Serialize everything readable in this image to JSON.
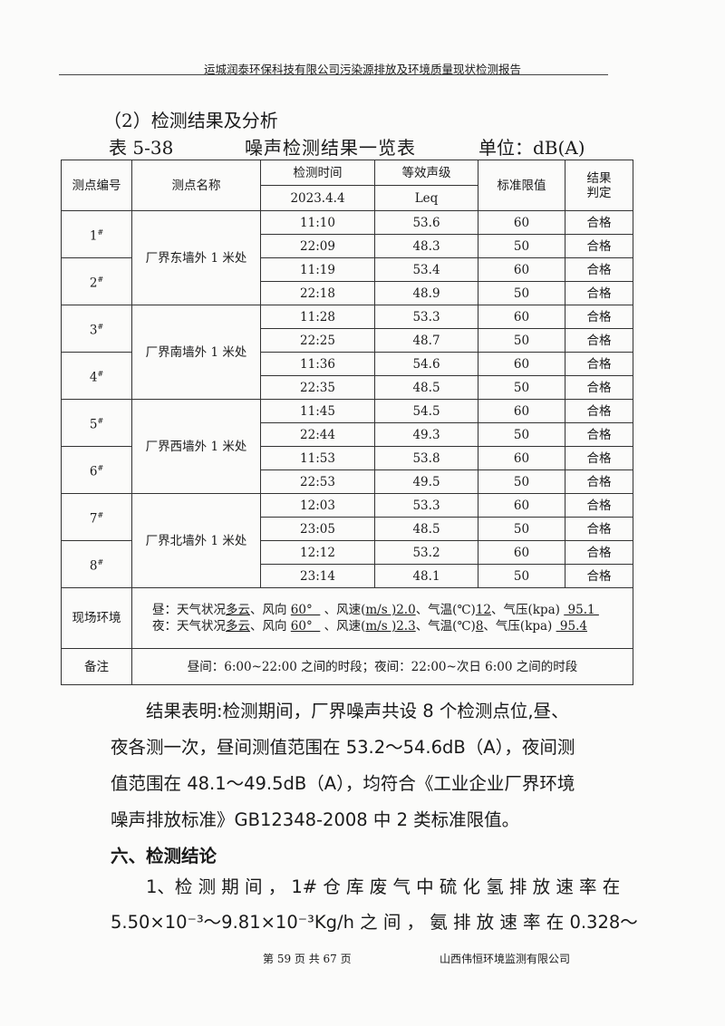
{
  "header": "运城润泰环保科技有限公司污染源排放及环境质量现状检测报告",
  "section_title": "（2）检测结果及分析",
  "caption": {
    "number": "表 5-38",
    "title": "噪声检测结果一览表",
    "unit": "单位：dB(A)"
  },
  "table": {
    "headers": {
      "point_no": "测点编号",
      "point_name": "测点名称",
      "time": "检测时间",
      "date": "2023.4.4",
      "level": "等效声级",
      "level_unit": "Leq",
      "limit": "标准限值",
      "result": "结果\n判定"
    },
    "groups": [
      {
        "name": "厂界东墙外 1 米处",
        "points": [
          {
            "id": "1",
            "rows": [
              [
                "11:10",
                "53.6",
                "60",
                "合格"
              ],
              [
                "22:09",
                "48.3",
                "50",
                "合格"
              ]
            ]
          },
          {
            "id": "2",
            "rows": [
              [
                "11:19",
                "53.4",
                "60",
                "合格"
              ],
              [
                "22:18",
                "48.9",
                "50",
                "合格"
              ]
            ]
          }
        ]
      },
      {
        "name": "厂界南墙外 1 米处",
        "points": [
          {
            "id": "3",
            "rows": [
              [
                "11:28",
                "53.3",
                "60",
                "合格"
              ],
              [
                "22:25",
                "48.7",
                "50",
                "合格"
              ]
            ]
          },
          {
            "id": "4",
            "rows": [
              [
                "11:36",
                "54.6",
                "60",
                "合格"
              ],
              [
                "22:35",
                "48.5",
                "50",
                "合格"
              ]
            ]
          }
        ]
      },
      {
        "name": "厂界西墙外 1 米处",
        "points": [
          {
            "id": "5",
            "rows": [
              [
                "11:45",
                "54.5",
                "60",
                "合格"
              ],
              [
                "22:44",
                "49.3",
                "50",
                "合格"
              ]
            ]
          },
          {
            "id": "6",
            "rows": [
              [
                "11:53",
                "53.8",
                "60",
                "合格"
              ],
              [
                "22:53",
                "49.5",
                "50",
                "合格"
              ]
            ]
          }
        ]
      },
      {
        "name": "厂界北墙外 1 米处",
        "points": [
          {
            "id": "7",
            "rows": [
              [
                "12:03",
                "53.3",
                "60",
                "合格"
              ],
              [
                "23:05",
                "48.5",
                "50",
                "合格"
              ]
            ]
          },
          {
            "id": "8",
            "rows": [
              [
                "12:12",
                "53.2",
                "60",
                "合格"
              ],
              [
                "23:14",
                "48.1",
                "50",
                "合格"
              ]
            ]
          }
        ]
      }
    ],
    "point_suffix": "#",
    "env_label": "现场环境",
    "env_lines": [
      [
        {
          "t": "昼：天气状况"
        },
        {
          "t": "多云",
          "u": true
        },
        {
          "t": "、风向 "
        },
        {
          "t": "60°  ",
          "u": true
        },
        {
          "t": " 、风速("
        },
        {
          "t": "m/s )2.0",
          "u": true
        },
        {
          "t": "、气温(℃)"
        },
        {
          "t": "12",
          "u": true
        },
        {
          "t": "、气压(kpa) "
        },
        {
          "t": " 95.1 ",
          "u": true
        }
      ],
      [
        {
          "t": "夜：天气状况"
        },
        {
          "t": "多云",
          "u": true
        },
        {
          "t": "、风向 "
        },
        {
          "t": "60°  ",
          "u": true
        },
        {
          "t": " 、风速("
        },
        {
          "t": "m/s )2.3",
          "u": true
        },
        {
          "t": "、气温(℃)"
        },
        {
          "t": "8",
          "u": true
        },
        {
          "t": "、气压(kpa) "
        },
        {
          "t": " 95.4",
          "u": true
        }
      ]
    ],
    "remark_label": "备注",
    "remark": "昼间：6:00~22:00 之间的时段；夜间：22:00~次日 6:00 之间的时段"
  },
  "result_para": [
    "　　结果表明:检测期间，厂界噪声共设 8 个检测点位,昼、",
    "夜各测一次，昼间测值范围在 53.2～54.6dB（A），夜间测",
    "值范围在 48.1～49.5dB（A），均符合《工业企业厂界环境",
    "噪声排放标准》GB12348-2008 中 2 类标准限值。"
  ],
  "conclusion_title": "六、检测结论",
  "conclusion_lines": [
    "　　1、检 测 期 间 ， 1# 仓 库 废 气 中 硫 化 氢 排 放 速 率 在",
    "5.50×10⁻³～9.81×10⁻³Kg/h 之 间 ， 氨 排 放 速 率 在 0.328～"
  ],
  "footer": {
    "page": "第 59 页 共 67 页",
    "company": "山西伟恒环境监测有限公司"
  }
}
